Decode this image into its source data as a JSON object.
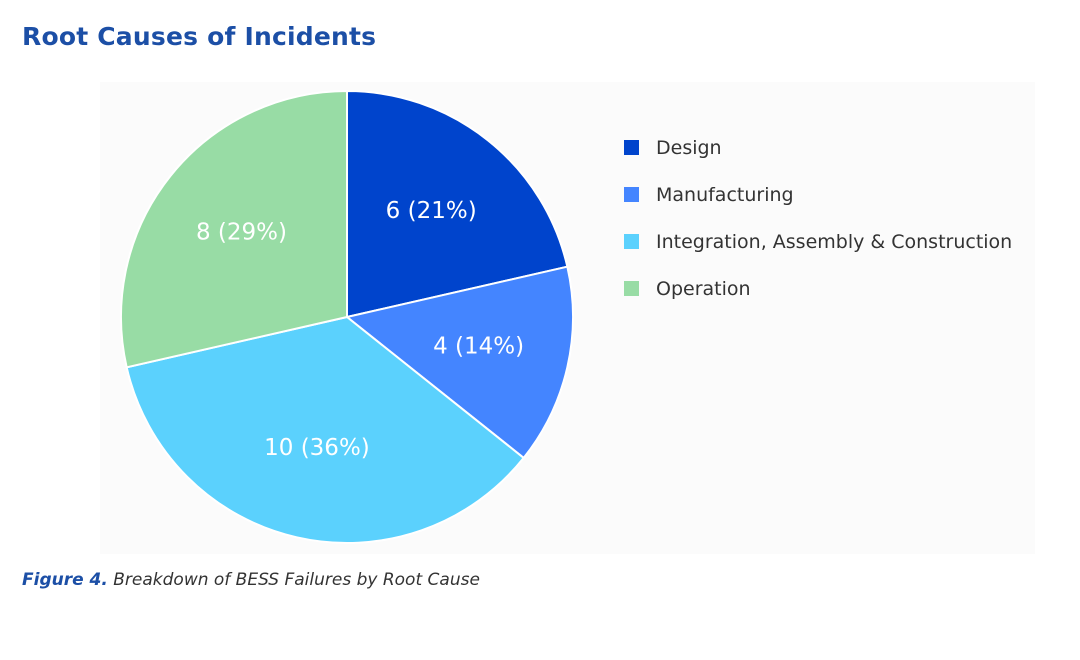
{
  "chart_data": {
    "type": "pie",
    "title": "Root Causes of Incidents",
    "categories": [
      "Design",
      "Manufacturing",
      "Integration, Assembly & Construction",
      "Operation"
    ],
    "values": [
      6,
      4,
      10,
      8
    ],
    "labels": [
      "6 (21%)",
      "4 (14%)",
      "10 (36%)",
      "8 (29%)"
    ],
    "colors": [
      "#0044cc",
      "#4485ff",
      "#5bd1fd",
      "#98dca5"
    ],
    "start_angle": "12 o'clock",
    "direction": "clockwise",
    "legend_position": "right"
  },
  "caption": {
    "prefix": "Figure 4.",
    "text": " Breakdown of BESS Failures by Root Cause"
  }
}
